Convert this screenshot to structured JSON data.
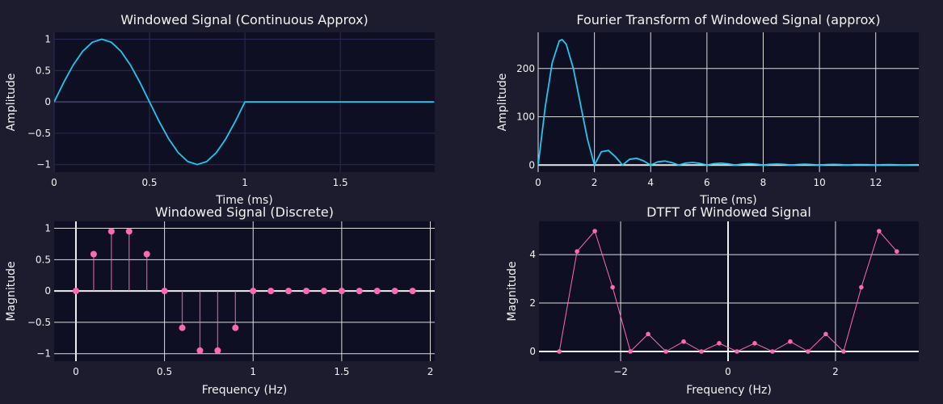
{
  "chart_data": [
    {
      "type": "line",
      "title": "Windowed Signal (Continuous Approx)",
      "xlabel": "Time (ms)",
      "ylabel": "Amplitude",
      "xlim": [
        0,
        1.995
      ],
      "ylim": [
        -1.12,
        1.11
      ],
      "xticks": [
        0,
        0.5,
        1,
        1.5
      ],
      "xtick_labels": [
        "0",
        "0.5",
        "1",
        "1.5"
      ],
      "yticks": [
        -1,
        -0.5,
        0,
        0.5,
        1
      ],
      "ytick_labels": [
        "−1",
        "−0.5",
        "0",
        "0.5",
        "1"
      ],
      "grid": true,
      "color": "#1ec8f0",
      "x": [
        0,
        0.05,
        0.1,
        0.15,
        0.2,
        0.25,
        0.3,
        0.35,
        0.4,
        0.45,
        0.5,
        0.55,
        0.6,
        0.65,
        0.7,
        0.75,
        0.8,
        0.85,
        0.9,
        0.95,
        1,
        1.99
      ],
      "y": [
        0,
        0.309,
        0.588,
        0.809,
        0.951,
        1,
        0.951,
        0.809,
        0.588,
        0.309,
        0,
        -0.309,
        -0.588,
        -0.809,
        -0.951,
        -1,
        -0.951,
        -0.809,
        -0.588,
        -0.309,
        0,
        0
      ]
    },
    {
      "type": "line",
      "title": "Fourier Transform of Windowed Signal (approx)",
      "xlabel": "Time (ms)",
      "ylabel": "Amplitude",
      "xlim": [
        0,
        13.53
      ],
      "ylim": [
        -14.6,
        275
      ],
      "xticks": [
        0,
        2,
        4,
        6,
        8,
        10,
        12
      ],
      "xtick_labels": [
        "0",
        "2",
        "4",
        "6",
        "8",
        "10",
        "12"
      ],
      "yticks": [
        0,
        100,
        200
      ],
      "ytick_labels": [
        "0",
        "100",
        "200"
      ],
      "grid": true,
      "color": "#1ec8f0",
      "x": [
        0,
        0.25,
        0.5,
        0.75,
        0.85,
        1,
        1.25,
        1.5,
        1.75,
        2,
        2.25,
        2.5,
        2.75,
        3,
        3.25,
        3.5,
        3.75,
        4,
        4.25,
        4.5,
        4.75,
        5,
        5.25,
        5.5,
        5.75,
        6,
        6.25,
        6.5,
        6.75,
        7,
        7.25,
        7.5,
        7.75,
        8,
        8.25,
        8.5,
        8.75,
        9,
        9.25,
        9.5,
        9.75,
        10,
        10.25,
        10.5,
        10.75,
        11,
        11.25,
        11.5,
        11.75,
        12,
        12.25,
        12.5,
        12.75,
        13,
        13.25,
        13.5
      ],
      "y": [
        0,
        120,
        212.2,
        257.2,
        260,
        250,
        200.1,
        127.3,
        54.6,
        0,
        27.7,
        30.3,
        17.1,
        0,
        11.8,
        14.1,
        8.6,
        0,
        6.6,
        8.3,
        5.2,
        0,
        4.2,
        5.4,
        3.5,
        0,
        3.0,
        3.9,
        2.5,
        0,
        2.2,
        2.9,
        1.9,
        0,
        1.7,
        2.2,
        1.5,
        0,
        1.3,
        1.8,
        1.2,
        0,
        1.1,
        1.5,
        1.0,
        0,
        0.9,
        1.2,
        0.8,
        0,
        0.75,
        1.0,
        0.7,
        0,
        0.64,
        0.88
      ]
    },
    {
      "type": "stem",
      "title": "Windowed Signal (Discrete)",
      "xlabel": "Frequency (Hz)",
      "ylabel": "Magnitude",
      "xlim": [
        -0.123,
        2.025
      ],
      "ylim": [
        -1.12,
        1.11
      ],
      "xticks": [
        0,
        0.5,
        1,
        1.5,
        2
      ],
      "xtick_labels": [
        "0",
        "0.5",
        "1",
        "1.5",
        "2"
      ],
      "yticks": [
        -1,
        -0.5,
        0,
        0.5,
        1
      ],
      "ytick_labels": [
        "−1",
        "−0.5",
        "0",
        "0.5",
        "1"
      ],
      "grid": true,
      "color": "#ff69b4",
      "x": [
        0,
        0.1,
        0.2,
        0.3,
        0.4,
        0.5,
        0.6,
        0.7,
        0.8,
        0.9,
        1,
        1.1,
        1.2,
        1.3,
        1.4,
        1.5,
        1.6,
        1.7,
        1.8,
        1.9
      ],
      "y": [
        0,
        0.588,
        0.951,
        0.951,
        0.588,
        0,
        -0.588,
        -0.951,
        -0.951,
        -0.588,
        0,
        0,
        0,
        0,
        0,
        0,
        0,
        0,
        0,
        0
      ]
    },
    {
      "type": "line",
      "title": "DTFT of Windowed Signal",
      "xlabel": "Frequency (Hz)",
      "ylabel": "Magnitude",
      "xlim": [
        -3.52,
        3.55
      ],
      "ylim": [
        -0.4,
        5.37
      ],
      "xticks": [
        -2,
        0,
        2
      ],
      "xtick_labels": [
        "−2",
        "0",
        "2"
      ],
      "yticks": [
        0,
        2,
        4
      ],
      "ytick_labels": [
        "0",
        "2",
        "4"
      ],
      "grid": true,
      "color": "#ff69b4",
      "markers": true,
      "x": [
        -3.1416,
        -2.8109,
        -2.4802,
        -2.1495,
        -1.8188,
        -1.4881,
        -1.1574,
        -0.8267,
        -0.496,
        -0.1653,
        0.1653,
        0.496,
        0.8267,
        1.1574,
        1.4881,
        1.8188,
        2.1495,
        2.4802,
        2.8109,
        3.1416
      ],
      "y": [
        0,
        4.13,
        4.97,
        2.65,
        0,
        0.72,
        0,
        0.41,
        0,
        0.34,
        0,
        0.34,
        0,
        0.41,
        0,
        0.72,
        0,
        2.65,
        4.97,
        4.13
      ]
    }
  ]
}
